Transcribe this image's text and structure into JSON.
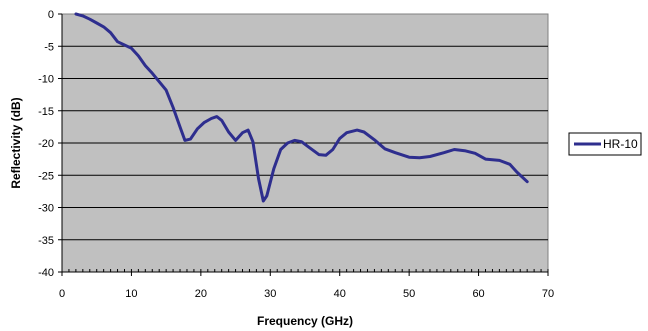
{
  "chart_data": {
    "type": "line",
    "title": "",
    "xlabel": "Frequency (GHz)",
    "ylabel": "Reflectivity (dB)",
    "xlim": [
      0,
      70
    ],
    "ylim": [
      -40,
      0
    ],
    "x_ticks": [
      0,
      10,
      20,
      30,
      40,
      50,
      60,
      70
    ],
    "y_ticks": [
      0,
      -5,
      -10,
      -15,
      -20,
      -25,
      -30,
      -35,
      -40
    ],
    "grid": "horizontal",
    "legend_position": "right",
    "plot_background": "#c0c0c0",
    "series": [
      {
        "name": "HR-10",
        "color": "#2e2e8e",
        "points": [
          [
            2,
            0
          ],
          [
            3,
            -0.3
          ],
          [
            4,
            -0.8
          ],
          [
            5,
            -1.4
          ],
          [
            6,
            -2.0
          ],
          [
            7,
            -2.9
          ],
          [
            8,
            -4.3
          ],
          [
            9,
            -4.8
          ],
          [
            10,
            -5.3
          ],
          [
            11,
            -6.5
          ],
          [
            12,
            -8.0
          ],
          [
            13,
            -9.2
          ],
          [
            14,
            -10.5
          ],
          [
            15,
            -11.8
          ],
          [
            16,
            -14.5
          ],
          [
            17,
            -17.5
          ],
          [
            17.7,
            -19.6
          ],
          [
            18.5,
            -19.4
          ],
          [
            19.5,
            -17.8
          ],
          [
            20.5,
            -16.8
          ],
          [
            21.5,
            -16.2
          ],
          [
            22.3,
            -15.9
          ],
          [
            23,
            -16.5
          ],
          [
            24,
            -18.3
          ],
          [
            25,
            -19.6
          ],
          [
            26,
            -18.4
          ],
          [
            26.8,
            -18.0
          ],
          [
            27.5,
            -19.8
          ],
          [
            28.3,
            -25.5
          ],
          [
            29,
            -29.0
          ],
          [
            29.5,
            -28.2
          ],
          [
            30.5,
            -24.0
          ],
          [
            31.5,
            -21.0
          ],
          [
            32.5,
            -20.0
          ],
          [
            33.5,
            -19.6
          ],
          [
            34.5,
            -19.8
          ],
          [
            35.5,
            -20.6
          ],
          [
            37,
            -21.8
          ],
          [
            38,
            -21.9
          ],
          [
            39,
            -21.0
          ],
          [
            40,
            -19.3
          ],
          [
            41,
            -18.4
          ],
          [
            42.5,
            -18.0
          ],
          [
            43.5,
            -18.3
          ],
          [
            45,
            -19.5
          ],
          [
            46.5,
            -20.9
          ],
          [
            48,
            -21.5
          ],
          [
            50,
            -22.2
          ],
          [
            51.5,
            -22.3
          ],
          [
            53,
            -22.1
          ],
          [
            55,
            -21.5
          ],
          [
            56.5,
            -21.0
          ],
          [
            58,
            -21.2
          ],
          [
            59.5,
            -21.6
          ],
          [
            61,
            -22.5
          ],
          [
            63,
            -22.7
          ],
          [
            64.5,
            -23.3
          ],
          [
            65.5,
            -24.5
          ],
          [
            67,
            -26.0
          ]
        ]
      }
    ]
  }
}
